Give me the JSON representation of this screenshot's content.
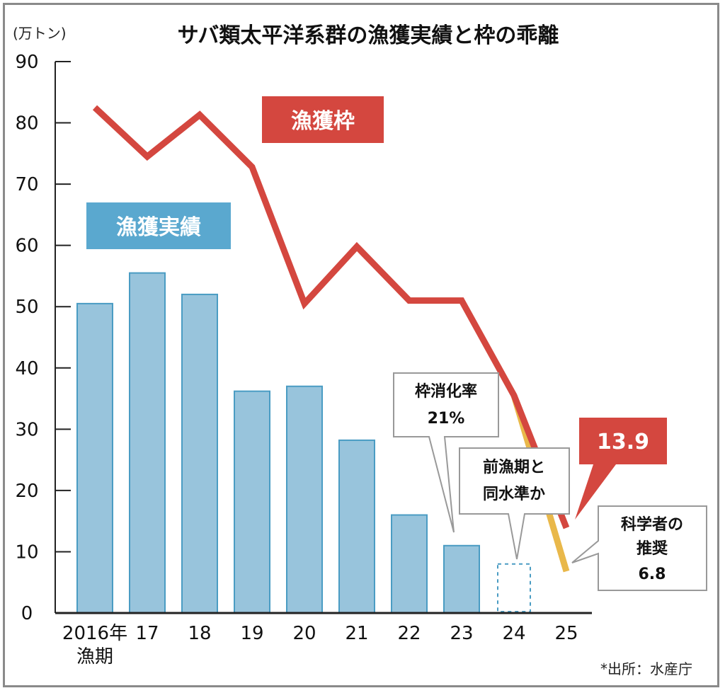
{
  "title": "サバ類太平洋系群の漁獲実績と枠の乖離",
  "unit": "(万トン)",
  "source": "*出所：水産庁",
  "colors": {
    "bar": "#98c4dc",
    "bar_stroke": "#4a9cc3",
    "quota_line": "#d4473f",
    "recommend_line": "#e9b84a",
    "axis": "#222222"
  },
  "labels": {
    "quota": "漁獲枠",
    "catch": "漁獲実績",
    "rate_line1": "枠消化率",
    "rate_line2": "21%",
    "same_line1": "前漁期と",
    "same_line2": "同水準か",
    "quota_2025": "13.9",
    "rec_line1": "科学者の",
    "rec_line2": "推奨",
    "rec_line3": "6.8"
  },
  "chart_data": {
    "type": "bar",
    "categories": [
      "2016年",
      "17",
      "18",
      "19",
      "20",
      "21",
      "22",
      "23",
      "24",
      "25"
    ],
    "category_sublabels": [
      "漁期",
      "",
      "",
      "",
      "",
      "",
      "",
      "",
      "",
      ""
    ],
    "ylim": [
      0,
      90
    ],
    "yticks": [
      0,
      10,
      20,
      30,
      40,
      50,
      60,
      70,
      80,
      90
    ],
    "series": [
      {
        "name": "漁獲実績",
        "type": "bar",
        "values": [
          50.5,
          55.5,
          52,
          36.2,
          37,
          28.2,
          16,
          11,
          null,
          null
        ],
        "estimated": [
          null,
          null,
          null,
          null,
          null,
          null,
          null,
          null,
          8,
          null
        ]
      },
      {
        "name": "漁獲枠",
        "type": "line",
        "values": [
          82.5,
          74.5,
          81.3,
          72.8,
          50.5,
          59.8,
          51,
          51,
          35.5,
          13.9
        ]
      },
      {
        "name": "科学者の推奨",
        "type": "line",
        "values": [
          null,
          null,
          null,
          null,
          null,
          null,
          null,
          null,
          35.5,
          6.8
        ]
      }
    ]
  }
}
